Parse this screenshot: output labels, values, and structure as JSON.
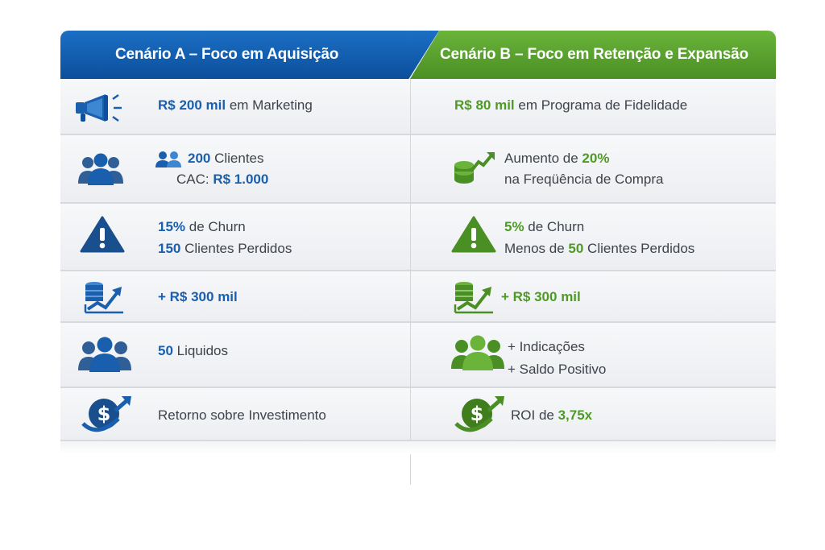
{
  "header": {
    "a": "Cenário A – Foco em Aquisição",
    "b": "Cenário B – Foco em Retenção e Expansão"
  },
  "colors": {
    "blue": "#1a5fae",
    "green": "#4f9a27",
    "header_blue": "#0c4f9c",
    "header_green": "#4a8f24"
  },
  "rows": [
    {
      "a": {
        "icon": "megaphone-icon",
        "strong": "R$ 200 mil",
        "rest": " em Marketing"
      },
      "b": {
        "strong": "R$ 80 mil",
        "rest": " em Programa de Fidelidade"
      }
    },
    {
      "a": {
        "icon": "users-icon",
        "line1_strong": "200",
        "line1_rest": " Clientes",
        "line2_pre": "CAC: ",
        "line2_strong": "R$ 1.000"
      },
      "b": {
        "icon": "coins-growth-icon",
        "line1_pre": "Aumento de ",
        "line1_strong": "20%",
        "line2": "na Freqüência de Compra"
      }
    },
    {
      "a": {
        "icon": "warning-icon",
        "line1_strong": "15%",
        "line1_rest": " de Churn",
        "line2_strong": "150",
        "line2_rest": " Clientes Perdidos"
      },
      "b": {
        "icon": "warning-icon",
        "line1_strong": "5%",
        "line1_rest": " de Churn",
        "line2_pre": "Menos de ",
        "line2_strong": "50",
        "line2_rest": " Clientes Perdidos"
      }
    },
    {
      "a": {
        "icon": "revenue-chart-icon",
        "strong": "+ R$ 300 mil"
      },
      "b": {
        "icon": "revenue-chart-icon",
        "strong": "+ R$ 300 mil"
      }
    },
    {
      "a": {
        "icon": "users-icon",
        "strong": "50",
        "rest": " Liquidos"
      },
      "b": {
        "icon": "users-icon",
        "line1": "+ Indicações",
        "line2": "+ Saldo Positivo"
      }
    },
    {
      "a": {
        "icon": "dollar-roi-icon",
        "text": "Retorno sobre Investimento"
      },
      "b": {
        "icon": "dollar-roi-icon",
        "pre": "ROI de ",
        "strong": "3,75x"
      }
    }
  ]
}
